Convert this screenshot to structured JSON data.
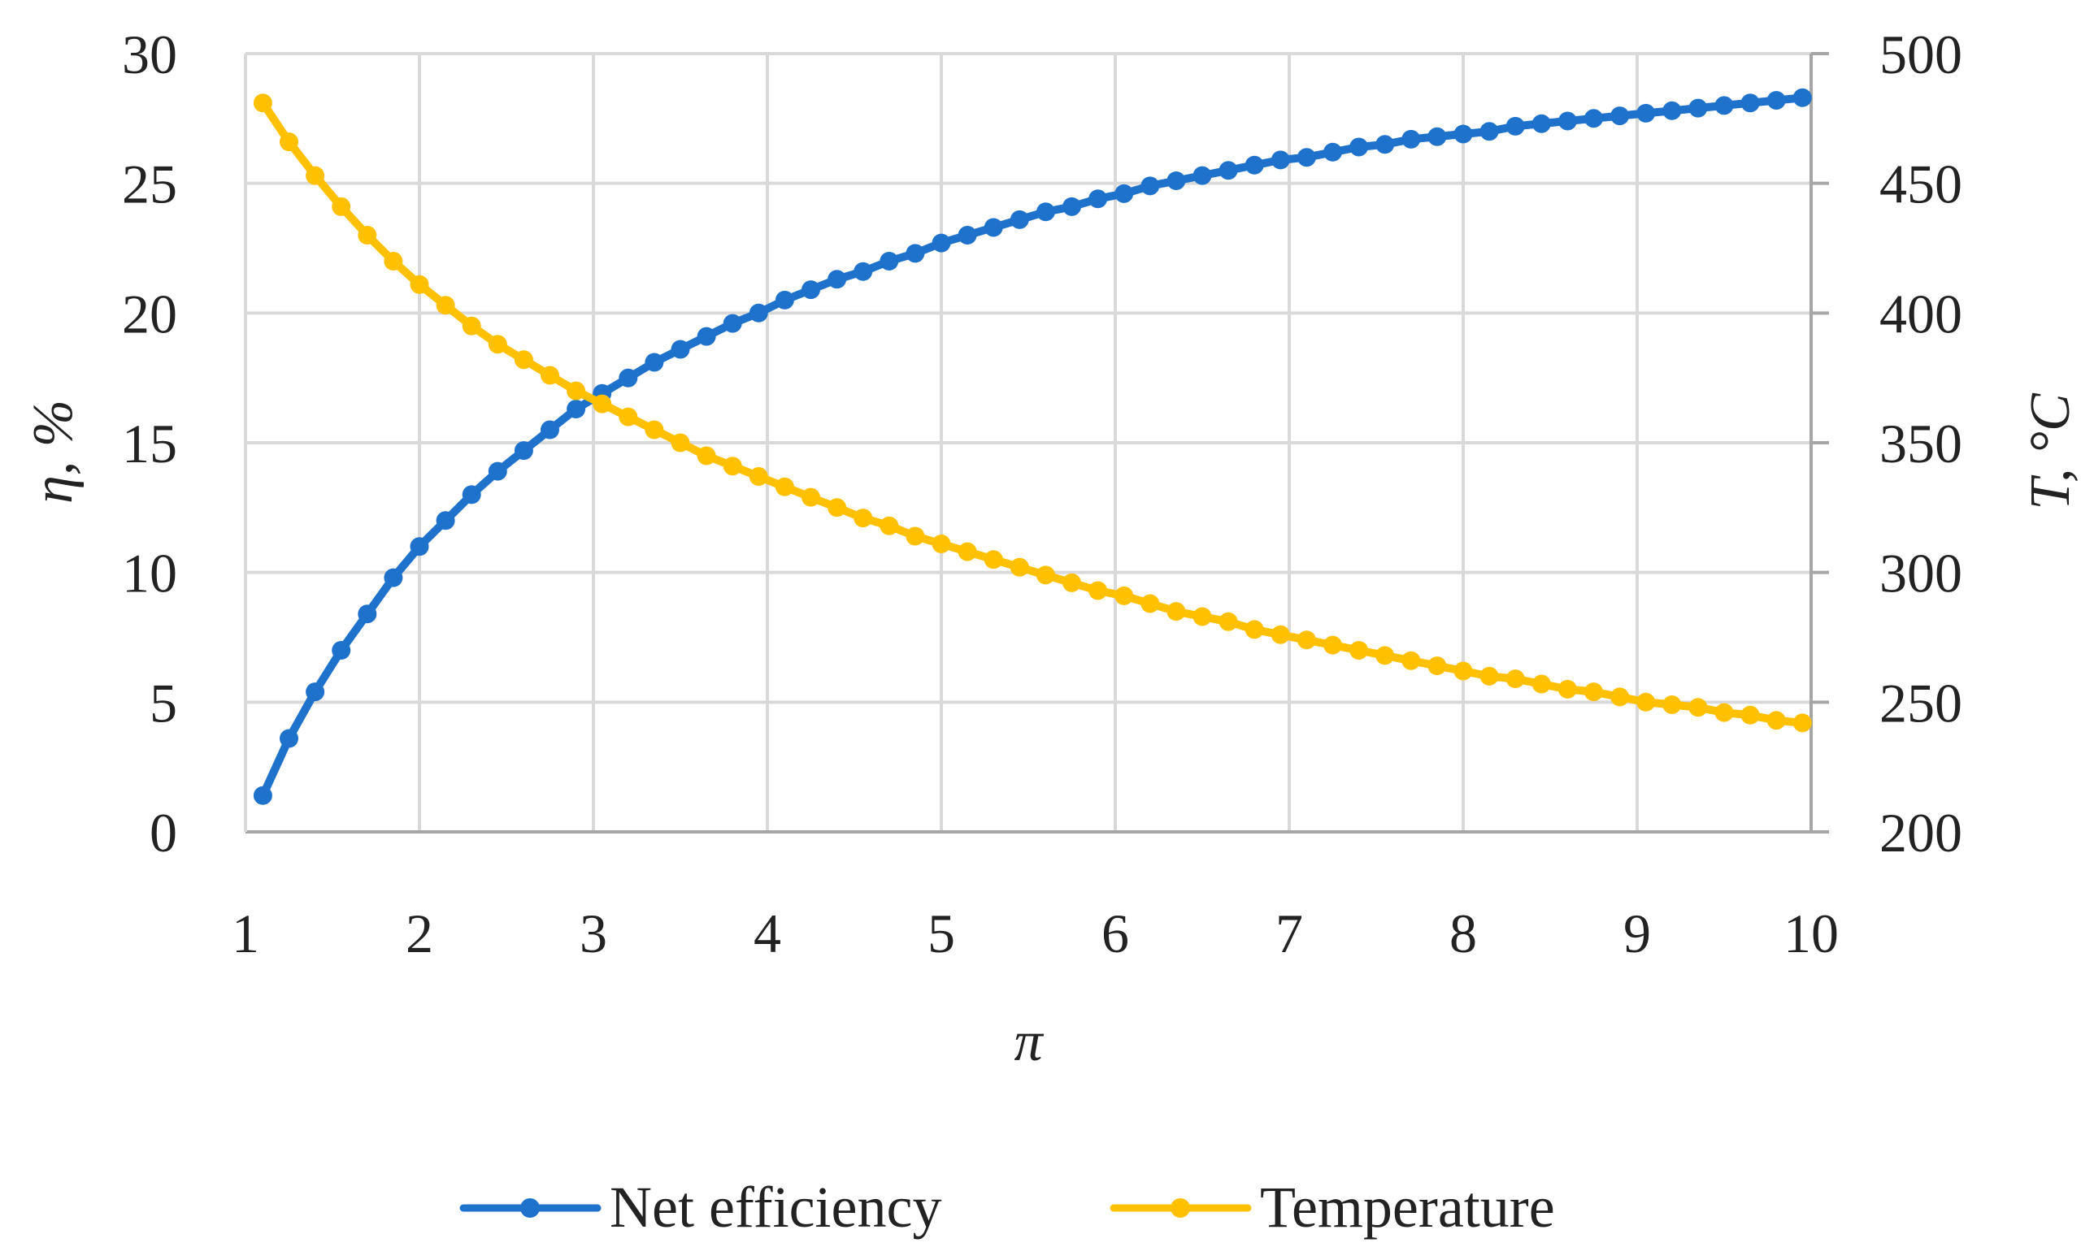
{
  "chart_data": {
    "type": "line",
    "title": "",
    "xlabel": "π",
    "ylabel": "η, %",
    "y2label": "T, °C",
    "xlim": [
      1,
      10
    ],
    "ylim": [
      0,
      30
    ],
    "y2lim": [
      200,
      500
    ],
    "x_ticks": [
      "1",
      "2",
      "3",
      "4",
      "5",
      "6",
      "7",
      "8",
      "9",
      "10"
    ],
    "y_ticks": [
      "0",
      "5",
      "10",
      "15",
      "20",
      "25",
      "30"
    ],
    "y2_ticks": [
      "200",
      "250",
      "300",
      "350",
      "400",
      "450",
      "500"
    ],
    "grid": true,
    "legend_position": "bottom",
    "x": [
      1.1,
      1.25,
      1.4,
      1.55,
      1.7,
      1.85,
      2.0,
      2.15,
      2.3,
      2.45,
      2.6,
      2.75,
      2.9,
      3.05,
      3.2,
      3.35,
      3.5,
      3.65,
      3.8,
      3.95,
      4.1,
      4.25,
      4.4,
      4.55,
      4.7,
      4.85,
      5.0,
      5.15,
      5.3,
      5.45,
      5.6,
      5.75,
      5.9,
      6.05,
      6.2,
      6.35,
      6.5,
      6.65,
      6.8,
      6.95,
      7.1,
      7.25,
      7.4,
      7.55,
      7.7,
      7.85,
      8.0,
      8.15,
      8.3,
      8.45,
      8.6,
      8.75,
      8.9,
      9.05,
      9.2,
      9.35,
      9.5,
      9.65,
      9.8,
      9.95
    ],
    "series": [
      {
        "name": "Net efficiency",
        "axis": "left",
        "color": "#1F72CC",
        "values": [
          1.4,
          3.6,
          5.4,
          7.0,
          8.4,
          9.8,
          11.0,
          12.0,
          13.0,
          13.9,
          14.7,
          15.5,
          16.3,
          16.9,
          17.5,
          18.1,
          18.6,
          19.1,
          19.6,
          20.0,
          20.5,
          20.9,
          21.3,
          21.6,
          22.0,
          22.3,
          22.7,
          23.0,
          23.3,
          23.6,
          23.9,
          24.1,
          24.4,
          24.6,
          24.9,
          25.1,
          25.3,
          25.5,
          25.7,
          25.9,
          26.0,
          26.2,
          26.4,
          26.5,
          26.7,
          26.8,
          26.9,
          27.0,
          27.2,
          27.3,
          27.4,
          27.5,
          27.6,
          27.7,
          27.8,
          27.9,
          28.0,
          28.1,
          28.2,
          28.3
        ]
      },
      {
        "name": "Temperature",
        "axis": "right",
        "color": "#FFC000",
        "values": [
          481,
          466,
          453,
          441,
          430,
          420,
          411,
          403,
          395,
          388,
          382,
          376,
          370,
          365,
          360,
          355,
          350,
          345,
          341,
          337,
          333,
          329,
          325,
          321,
          318,
          314,
          311,
          308,
          305,
          302,
          299,
          296,
          293,
          291,
          288,
          285,
          283,
          281,
          278,
          276,
          274,
          272,
          270,
          268,
          266,
          264,
          262,
          260,
          259,
          257,
          255,
          254,
          252,
          250,
          249,
          248,
          246,
          245,
          243,
          242
        ]
      }
    ]
  }
}
